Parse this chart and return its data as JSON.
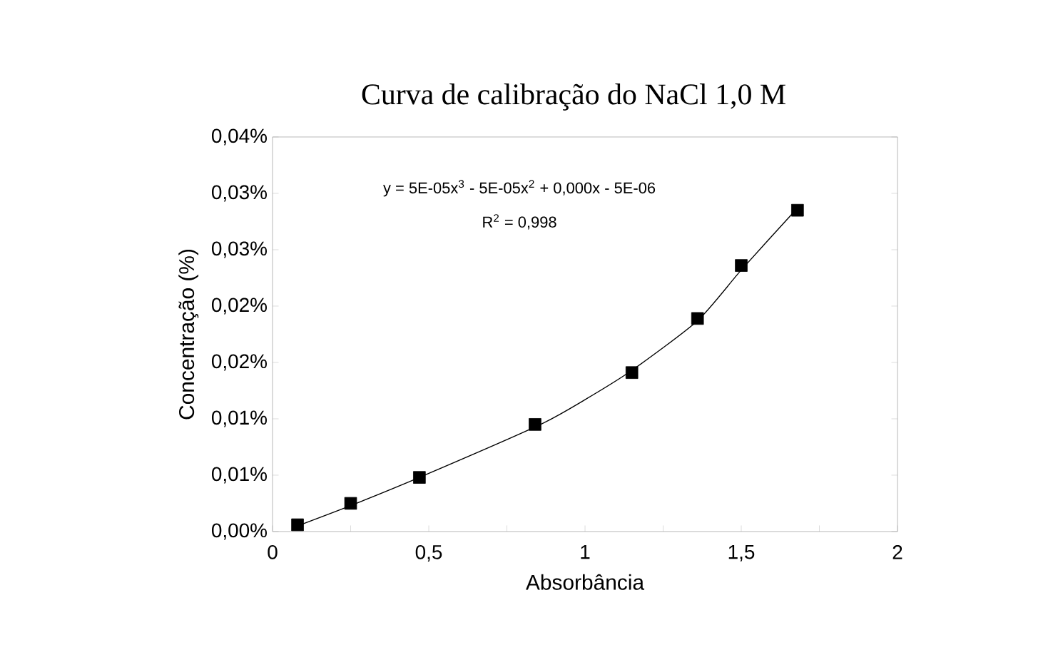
{
  "chart_data": {
    "type": "scatter",
    "title": "Curva de calibração do NaCl 1,0 M",
    "xlabel": "Absorbância",
    "ylabel": "Concentração (%)",
    "annotations": [
      "y = 5E-05x$^{3}$ - 5E-05x$^{2}$ + 0,000x - 5E-06",
      "R$^{2}$ = 0,998"
    ],
    "series": [
      {
        "color": "#000000",
        "marker": "square",
        "x": [
          0.08,
          0.25,
          0.47,
          0.84,
          1.15,
          1.36,
          1.5,
          1.68
        ],
        "values": [
          0.0006,
          0.0025,
          0.0048,
          0.0095,
          0.0141,
          0.0189,
          0.0236,
          0.0285
        ]
      },
      {
        "type": "line",
        "color": "#000000",
        "line_style": "solid",
        "marker": "none",
        "x": [
          0.08,
          0.25,
          0.47,
          0.85,
          1.0,
          1.15,
          1.36,
          1.5,
          1.68
        ],
        "values": [
          0.0005,
          0.0023,
          0.0048,
          0.0094,
          0.0117,
          0.0143,
          0.0187,
          0.0232,
          0.0287
        ]
      }
    ],
    "xlim": [
      0,
      2
    ],
    "ylim": [
      0,
      0.035
    ],
    "xticks": [
      0,
      {
        "value": 0.25,
        "label": null
      },
      {
        "value": 0.5,
        "label": "0,5"
      },
      {
        "value": 0.75,
        "label": null
      },
      1,
      {
        "value": 1.25,
        "label": null
      },
      {
        "value": 1.5,
        "label": "1,5"
      },
      {
        "value": 1.75,
        "label": null
      },
      2
    ],
    "yticks": [
      {
        "value": 0,
        "label": "0,00%"
      },
      {
        "value": 0.005,
        "label": "0,01%"
      },
      {
        "value": 0.01,
        "label": "0,01%"
      },
      {
        "value": 0.015,
        "label": "0,02%"
      },
      {
        "value": 0.02,
        "label": "0,02%"
      },
      {
        "value": 0.025,
        "label": "0,03%"
      },
      {
        "value": 0.03,
        "label": "0,03%"
      },
      {
        "value": 0.035,
        "label": "0,04%"
      }
    ],
    "grid": false
  }
}
